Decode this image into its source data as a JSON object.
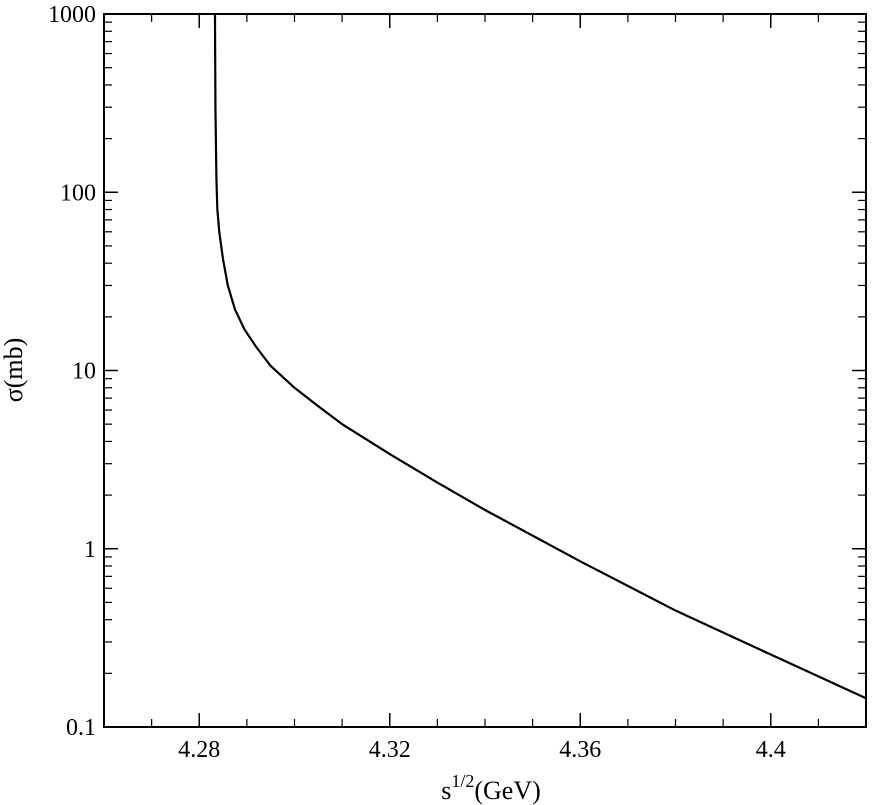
{
  "chart_data": {
    "type": "line",
    "title": "",
    "xlabel": "s",
    "xlabel_superscript": "1/2",
    "xlabel_unit": "(GeV)",
    "ylabel": "σ(mb)",
    "xlim": [
      4.26,
      4.42
    ],
    "ylim": [
      0.1,
      1000
    ],
    "yscale": "log",
    "grid": false,
    "legend": "none",
    "line_color": "#000000",
    "x_ticks": [
      {
        "value": 4.28,
        "label": "4.28"
      },
      {
        "value": 4.32,
        "label": "4.32"
      },
      {
        "value": 4.36,
        "label": "4.36"
      },
      {
        "value": 4.4,
        "label": "4.4"
      }
    ],
    "y_ticks": [
      {
        "value": 0.1,
        "label": "0.1"
      },
      {
        "value": 1,
        "label": "1"
      },
      {
        "value": 10,
        "label": "10"
      },
      {
        "value": 100,
        "label": "100"
      },
      {
        "value": 1000,
        "label": "1000"
      }
    ],
    "series": [
      {
        "x": [
          4.2833,
          4.2834,
          4.2836,
          4.2838,
          4.2842,
          4.285,
          4.286,
          4.2875,
          4.2895,
          4.292,
          4.295,
          4.3,
          4.305,
          4.31,
          4.32,
          4.33,
          4.34,
          4.36,
          4.38,
          4.4,
          4.42
        ],
        "y": [
          1000,
          300,
          120,
          80,
          60,
          42,
          30,
          22,
          17,
          13.5,
          10.6,
          8.0,
          6.3,
          5.0,
          3.4,
          2.35,
          1.65,
          0.85,
          0.45,
          0.255,
          0.145
        ]
      }
    ]
  }
}
